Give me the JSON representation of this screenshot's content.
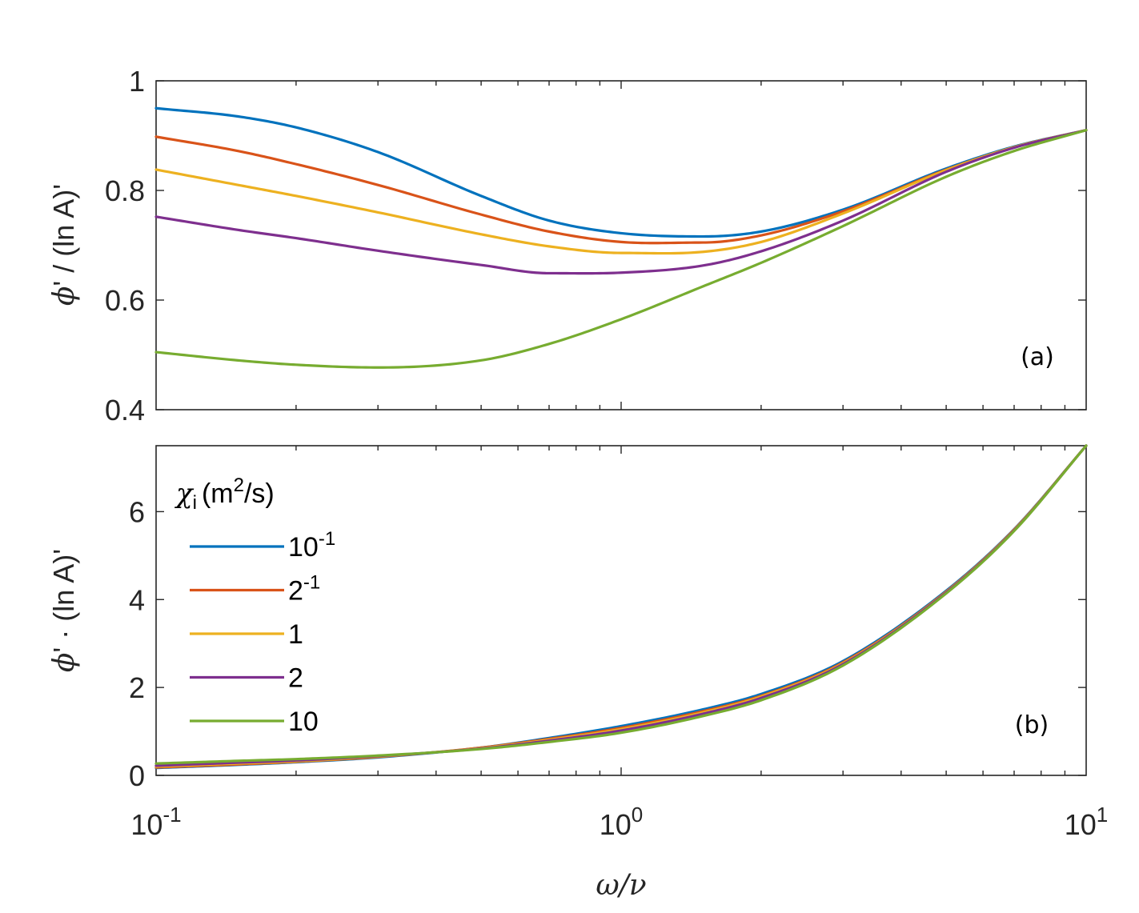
{
  "chart_data": [
    {
      "type": "line",
      "panel_label": "(a)",
      "xscale": "log",
      "xlim": [
        0.1,
        10
      ],
      "ylim": [
        0.4,
        1
      ],
      "xlabel": "ω/ν",
      "ylabel": "ϕ' / (ln A)'",
      "ylabel_parts": {
        "phi": "ϕ",
        "rest": "' / (ln A)'"
      },
      "yticks": [
        "0.4",
        "0.6",
        "0.8",
        "1"
      ],
      "ytick_values": [
        0.4,
        0.6,
        0.8,
        1
      ],
      "x": [
        0.1,
        0.15,
        0.2,
        0.3,
        0.5,
        0.7,
        1,
        1.5,
        2,
        3,
        5,
        7,
        10
      ],
      "series": [
        {
          "name": "10^-1",
          "color": "#0072BD",
          "values": [
            0.95,
            0.935,
            0.915,
            0.87,
            0.79,
            0.745,
            0.722,
            0.716,
            0.725,
            0.765,
            0.84,
            0.88,
            0.91
          ]
        },
        {
          "name": "2^-1",
          "color": "#D95319",
          "values": [
            0.898,
            0.872,
            0.848,
            0.81,
            0.756,
            0.725,
            0.706,
            0.705,
            0.718,
            0.762,
            0.838,
            0.879,
            0.91
          ]
        },
        {
          "name": "1",
          "color": "#EDB120",
          "values": [
            0.838,
            0.81,
            0.79,
            0.76,
            0.72,
            0.698,
            0.686,
            0.688,
            0.706,
            0.758,
            0.837,
            0.879,
            0.91
          ]
        },
        {
          "name": "2",
          "color": "#7E2F8E",
          "values": [
            0.752,
            0.728,
            0.713,
            0.69,
            0.664,
            0.649,
            0.65,
            0.663,
            0.689,
            0.745,
            0.834,
            0.878,
            0.91
          ]
        },
        {
          "name": "10",
          "color": "#77AC30",
          "values": [
            0.505,
            0.49,
            0.482,
            0.477,
            0.49,
            0.52,
            0.565,
            0.625,
            0.668,
            0.735,
            0.825,
            0.872,
            0.91
          ]
        }
      ]
    },
    {
      "type": "line",
      "panel_label": "(b)",
      "xscale": "log",
      "xlim": [
        0.1,
        10
      ],
      "ylim": [
        0,
        7.5
      ],
      "xlabel": "ω/ν",
      "ylabel": "ϕ' · (ln A)'",
      "ylabel_parts": {
        "phi": "ϕ",
        "rest": "' · (ln A)'"
      },
      "xticks": [
        {
          "base": "10",
          "exp": "-1"
        },
        {
          "base": "10",
          "exp": "0"
        },
        {
          "base": "10",
          "exp": "1"
        }
      ],
      "yticks": [
        "0",
        "2",
        "4",
        "6"
      ],
      "ytick_values": [
        0,
        2,
        4,
        6
      ],
      "x": [
        0.1,
        0.15,
        0.2,
        0.3,
        0.5,
        0.7,
        1,
        1.5,
        2,
        3,
        5,
        7,
        10
      ],
      "series": [
        {
          "name": "10^-1",
          "color": "#0072BD",
          "values": [
            0.17,
            0.24,
            0.3,
            0.41,
            0.63,
            0.85,
            1.12,
            1.5,
            1.85,
            2.6,
            4.2,
            5.6,
            7.5
          ]
        },
        {
          "name": "2^-1",
          "color": "#D95319",
          "values": [
            0.18,
            0.25,
            0.31,
            0.42,
            0.63,
            0.83,
            1.08,
            1.46,
            1.81,
            2.57,
            4.18,
            5.59,
            7.5
          ]
        },
        {
          "name": "1",
          "color": "#EDB120",
          "values": [
            0.2,
            0.27,
            0.32,
            0.43,
            0.62,
            0.81,
            1.05,
            1.43,
            1.79,
            2.55,
            4.17,
            5.58,
            7.5
          ]
        },
        {
          "name": "2",
          "color": "#7E2F8E",
          "values": [
            0.22,
            0.29,
            0.34,
            0.44,
            0.61,
            0.79,
            1.02,
            1.4,
            1.76,
            2.53,
            4.16,
            5.57,
            7.5
          ]
        },
        {
          "name": "10",
          "color": "#77AC30",
          "values": [
            0.27,
            0.33,
            0.37,
            0.45,
            0.6,
            0.76,
            0.97,
            1.35,
            1.71,
            2.5,
            4.14,
            5.56,
            7.5
          ]
        }
      ]
    }
  ],
  "legend": {
    "title_symbol": "χ",
    "title_sub": "i",
    "title_unit_open": "(m",
    "title_unit_sup": "2",
    "title_unit_close": "/s)",
    "entries": [
      {
        "base": "10",
        "exp": "-1",
        "color": "#0072BD"
      },
      {
        "base": "2",
        "exp": "-1",
        "color": "#D95319"
      },
      {
        "base": "1",
        "exp": "",
        "color": "#EDB120"
      },
      {
        "base": "2",
        "exp": "",
        "color": "#7E2F8E"
      },
      {
        "base": "10",
        "exp": "",
        "color": "#77AC30"
      }
    ]
  }
}
